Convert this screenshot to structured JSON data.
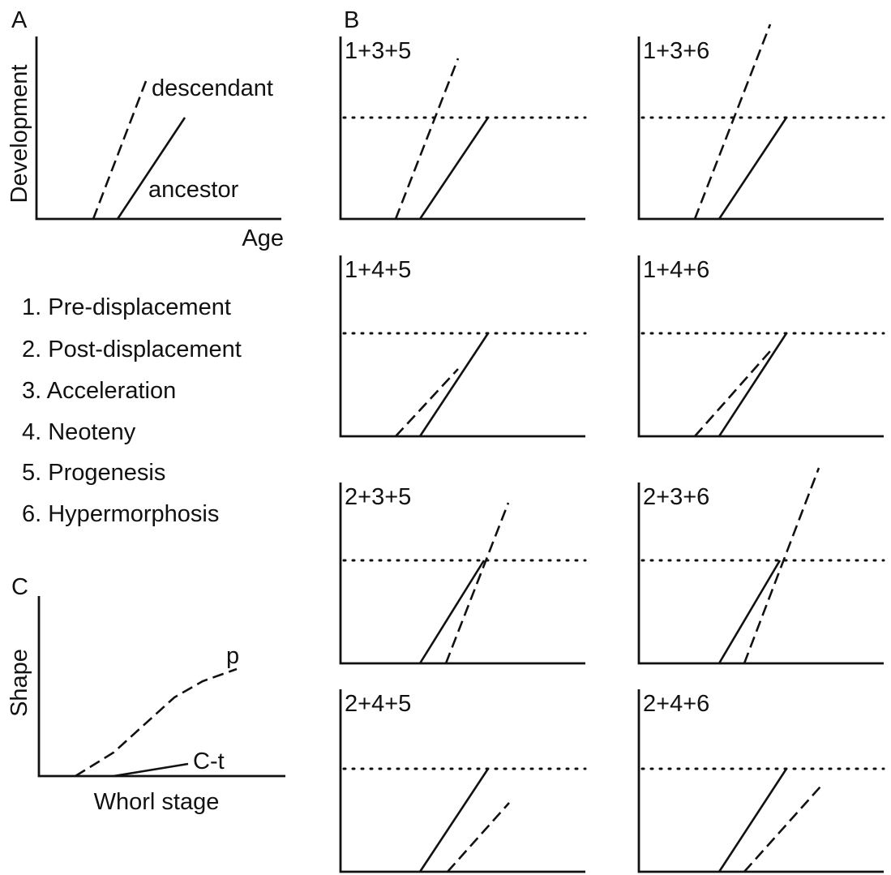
{
  "panel_a": {
    "label": "A",
    "y_axis": "Development",
    "x_axis": "Age",
    "descendant": "descendant",
    "ancestor": "ancestor"
  },
  "legend": {
    "items": [
      "1. Pre-displacement",
      "2. Post-displacement",
      "3. Acceleration",
      "4. Neoteny",
      "5. Progenesis",
      "6. Hypermorphosis"
    ]
  },
  "panel_b": {
    "label": "B",
    "subpanels": [
      "1+3+5",
      "1+3+6",
      "1+4+5",
      "1+4+6",
      "2+3+5",
      "2+3+6",
      "2+4+5",
      "2+4+6"
    ]
  },
  "panel_c": {
    "label": "C",
    "y_axis": "Shape",
    "x_axis": "Whorl stage",
    "p": "p",
    "ct": "C-t"
  }
}
